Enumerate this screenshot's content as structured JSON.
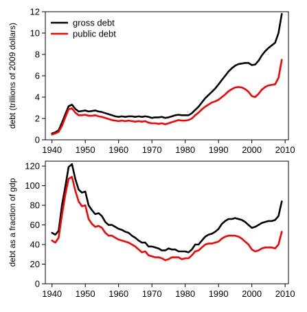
{
  "chart_data": [
    {
      "type": "line",
      "title": "",
      "xlabel": "",
      "ylabel": "debt (trillions of 2009 dollars)",
      "xlim": [
        1938,
        2011
      ],
      "ylim": [
        0,
        12
      ],
      "xticks": [
        1940,
        1950,
        1960,
        1970,
        1980,
        1990,
        2000,
        2010
      ],
      "xtick_labels": [
        "1940",
        "1950",
        "1960",
        "1970",
        "1980",
        "1990",
        "2000",
        "2010"
      ],
      "yticks": [
        0,
        2,
        4,
        6,
        8,
        10,
        12
      ],
      "ytick_labels": [
        "0",
        "2",
        "4",
        "6",
        "8",
        "10",
        "12"
      ],
      "grid": false,
      "legend": "top-left",
      "x": [
        1940,
        1941,
        1942,
        1943,
        1944,
        1945,
        1946,
        1947,
        1948,
        1949,
        1950,
        1951,
        1952,
        1953,
        1954,
        1955,
        1956,
        1957,
        1958,
        1959,
        1960,
        1961,
        1962,
        1963,
        1964,
        1965,
        1966,
        1967,
        1968,
        1969,
        1970,
        1971,
        1972,
        1973,
        1974,
        1975,
        1976,
        1977,
        1978,
        1979,
        1980,
        1981,
        1982,
        1983,
        1984,
        1985,
        1986,
        1987,
        1988,
        1989,
        1990,
        1991,
        1992,
        1993,
        1994,
        1995,
        1996,
        1997,
        1998,
        1999,
        2000,
        2001,
        2002,
        2003,
        2004,
        2005,
        2006,
        2007,
        2008,
        2009
      ],
      "series": [
        {
          "name": "gross debt",
          "color": "#000000",
          "values": [
            0.6,
            0.7,
            0.9,
            1.6,
            2.4,
            3.15,
            3.3,
            2.9,
            2.65,
            2.7,
            2.75,
            2.65,
            2.7,
            2.75,
            2.65,
            2.6,
            2.5,
            2.4,
            2.3,
            2.2,
            2.15,
            2.2,
            2.15,
            2.2,
            2.2,
            2.15,
            2.2,
            2.15,
            2.2,
            2.15,
            2.05,
            2.1,
            2.1,
            2.15,
            2.05,
            2.1,
            2.2,
            2.3,
            2.35,
            2.3,
            2.3,
            2.3,
            2.5,
            2.8,
            3.1,
            3.5,
            3.9,
            4.2,
            4.5,
            4.8,
            5.2,
            5.6,
            6.0,
            6.4,
            6.7,
            6.95,
            7.1,
            7.15,
            7.2,
            7.2,
            7.0,
            7.05,
            7.4,
            7.9,
            8.3,
            8.6,
            8.85,
            9.1,
            10.0,
            11.8
          ]
        },
        {
          "name": "public debt",
          "color": "#ff0000",
          "values": [
            0.5,
            0.6,
            0.75,
            1.3,
            2.1,
            2.85,
            2.95,
            2.55,
            2.3,
            2.3,
            2.35,
            2.25,
            2.25,
            2.3,
            2.2,
            2.15,
            2.05,
            1.95,
            1.85,
            1.8,
            1.75,
            1.8,
            1.75,
            1.8,
            1.75,
            1.7,
            1.75,
            1.7,
            1.75,
            1.6,
            1.55,
            1.55,
            1.5,
            1.55,
            1.45,
            1.55,
            1.65,
            1.75,
            1.85,
            1.8,
            1.8,
            1.85,
            2.0,
            2.3,
            2.55,
            2.85,
            3.1,
            3.3,
            3.5,
            3.6,
            3.75,
            4.0,
            4.25,
            4.55,
            4.75,
            4.9,
            4.95,
            4.9,
            4.75,
            4.5,
            4.1,
            4.0,
            4.3,
            4.7,
            4.95,
            5.1,
            5.15,
            5.2,
            5.8,
            7.5
          ]
        }
      ]
    },
    {
      "type": "line",
      "title": "",
      "xlabel": "",
      "ylabel": "debt as a fraction of gdp",
      "xlim": [
        1938,
        2011
      ],
      "ylim": [
        0,
        125
      ],
      "xticks": [
        1940,
        1950,
        1960,
        1970,
        1980,
        1990,
        2000,
        2010
      ],
      "xtick_labels": [
        "1940",
        "1950",
        "1960",
        "1970",
        "1980",
        "1990",
        "2000",
        "2010"
      ],
      "yticks": [
        0,
        20,
        40,
        60,
        80,
        100,
        120
      ],
      "ytick_labels": [
        "0",
        "20",
        "40",
        "60",
        "80",
        "100",
        "120"
      ],
      "grid": false,
      "legend": "none",
      "x": [
        1940,
        1941,
        1942,
        1943,
        1944,
        1945,
        1946,
        1947,
        1948,
        1949,
        1950,
        1951,
        1952,
        1953,
        1954,
        1955,
        1956,
        1957,
        1958,
        1959,
        1960,
        1961,
        1962,
        1963,
        1964,
        1965,
        1966,
        1967,
        1968,
        1969,
        1970,
        1971,
        1972,
        1973,
        1974,
        1975,
        1976,
        1977,
        1978,
        1979,
        1980,
        1981,
        1982,
        1983,
        1984,
        1985,
        1986,
        1987,
        1988,
        1989,
        1990,
        1991,
        1992,
        1993,
        1994,
        1995,
        1996,
        1997,
        1998,
        1999,
        2000,
        2001,
        2002,
        2003,
        2004,
        2005,
        2006,
        2007,
        2008,
        2009
      ],
      "series": [
        {
          "name": "gross debt",
          "color": "#000000",
          "values": [
            52,
            50,
            54,
            80,
            99,
            119,
            122,
            107,
            96,
            93,
            94,
            80,
            75,
            71,
            72,
            69,
            63,
            60,
            60,
            58,
            56,
            55,
            53,
            52,
            49,
            47,
            44,
            42,
            42,
            38,
            38,
            37,
            36,
            34,
            34,
            36,
            35,
            35,
            33,
            33,
            33,
            32,
            35,
            40,
            40,
            44,
            48,
            50,
            51,
            53,
            56,
            61,
            64,
            66,
            66,
            67,
            66,
            65,
            63,
            60,
            57,
            58,
            60,
            62,
            63,
            64,
            64,
            65,
            69,
            84
          ]
        },
        {
          "name": "public debt",
          "color": "#ff0000",
          "values": [
            44,
            42,
            47,
            70,
            91,
            107,
            109,
            95,
            84,
            79,
            80,
            66,
            61,
            58,
            59,
            57,
            52,
            49,
            49,
            47,
            45,
            44,
            43,
            42,
            40,
            38,
            35,
            32,
            33,
            29,
            28,
            27,
            27,
            26,
            24,
            25,
            27,
            27,
            27,
            25,
            26,
            26,
            29,
            33,
            34,
            37,
            40,
            41,
            41,
            42,
            43,
            46,
            48,
            49,
            49,
            49,
            48,
            46,
            43,
            40,
            35,
            33,
            34,
            36,
            37,
            37,
            37,
            36,
            40,
            53
          ]
        }
      ]
    }
  ]
}
